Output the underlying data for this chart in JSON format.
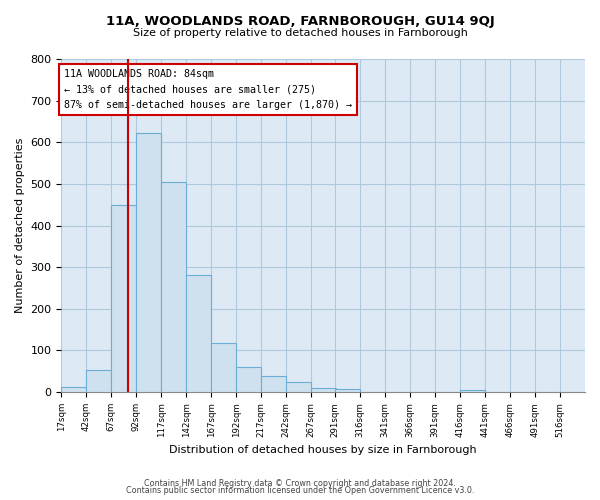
{
  "title": "11A, WOODLANDS ROAD, FARNBOROUGH, GU14 9QJ",
  "subtitle": "Size of property relative to detached houses in Farnborough",
  "xlabel": "Distribution of detached houses by size in Farnborough",
  "ylabel": "Number of detached properties",
  "bar_edges": [
    17,
    42,
    67,
    92,
    117,
    142,
    167,
    192,
    217,
    242,
    267,
    291,
    316,
    341,
    366,
    391,
    416,
    441,
    466,
    491,
    516
  ],
  "bar_heights": [
    12,
    52,
    450,
    622,
    505,
    280,
    118,
    60,
    38,
    25,
    10,
    7,
    0,
    0,
    0,
    0,
    5,
    0,
    0,
    0,
    0
  ],
  "bar_color": "#cfe0ef",
  "bar_edge_color": "#6aaed6",
  "vline_x": 84,
  "vline_color": "#cc0000",
  "annotation_text": "11A WOODLANDS ROAD: 84sqm\n← 13% of detached houses are smaller (275)\n87% of semi-detached houses are larger (1,870) →",
  "annotation_box_color": "#ffffff",
  "annotation_box_edge": "#cc0000",
  "ylim": [
    0,
    800
  ],
  "yticks": [
    0,
    100,
    200,
    300,
    400,
    500,
    600,
    700,
    800
  ],
  "xtick_labels": [
    "17sqm",
    "42sqm",
    "67sqm",
    "92sqm",
    "117sqm",
    "142sqm",
    "167sqm",
    "192sqm",
    "217sqm",
    "242sqm",
    "267sqm",
    "291sqm",
    "316sqm",
    "341sqm",
    "366sqm",
    "391sqm",
    "416sqm",
    "441sqm",
    "466sqm",
    "491sqm",
    "516sqm"
  ],
  "footer_line1": "Contains HM Land Registry data © Crown copyright and database right 2024.",
  "footer_line2": "Contains public sector information licensed under the Open Government Licence v3.0.",
  "bg_color": "#ffffff",
  "plot_bg_color": "#ddeaf5",
  "grid_color": "#b0c8dc"
}
